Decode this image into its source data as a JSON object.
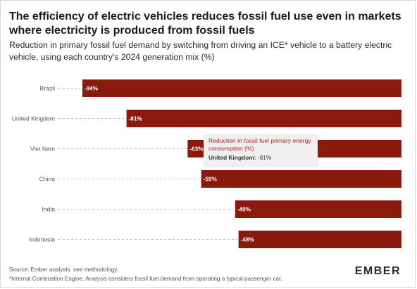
{
  "title": "The efficiency of electric vehicles reduces fossil fuel use even in markets where electricity is produced from fossil fuels",
  "subtitle": "Reduction in primary fossil fuel demand by switching from driving an ICE* vehicle to a battery electric vehicle, using each country's 2024 generation mix (%)",
  "chart_data": {
    "type": "bar",
    "orientation": "horizontal",
    "categories": [
      "Brazil",
      "United Kingdom",
      "Viet Nam",
      "China",
      "India",
      "Indonesia"
    ],
    "values": [
      -94,
      -81,
      -63,
      -59,
      -49,
      -48
    ],
    "value_labels": [
      "-94%",
      "-81%",
      "-63%",
      "-59%",
      "-49%",
      "-48%"
    ],
    "xlim": [
      -100,
      0
    ],
    "grid": false,
    "bar_color": "#8b1a0e",
    "label_color": "#ffffff"
  },
  "tooltip": {
    "title": "Reduction in fossil fuel primary energy consumption (%)",
    "country": "United Kingdom:",
    "value": "-81%"
  },
  "footer": {
    "source": "Source: Ember analysis, see methodology.",
    "note": "*Internal Combustion Engine. Analysis considers fossil fuel demand from operating a typical passenger car."
  },
  "logo": "EMBER"
}
